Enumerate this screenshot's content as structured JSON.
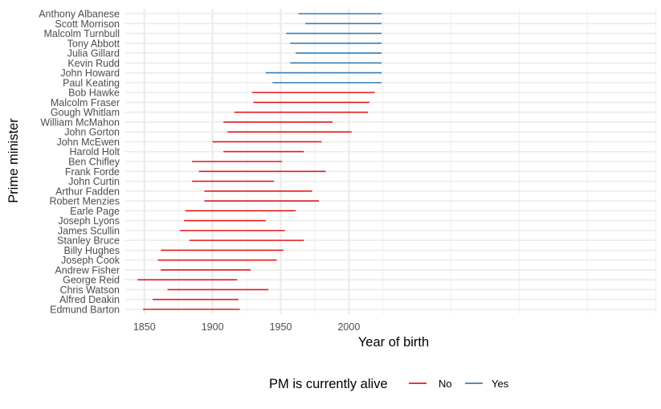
{
  "chart_data": {
    "type": "range-segments",
    "xlabel": "Year of birth",
    "ylabel": "Prime minister",
    "xlim": [
      1836,
      2226
    ],
    "x_ticks": [
      1850,
      1900,
      1950,
      2000
    ],
    "grid": true,
    "legend": {
      "title": "PM is currently alive",
      "position": "bottom",
      "items": [
        {
          "label": "No",
          "color": "#E41A1C"
        },
        {
          "label": "Yes",
          "color": "#377EB8"
        }
      ]
    },
    "series": [
      {
        "label": "Edmund Barton",
        "start": 1849,
        "end": 1920,
        "alive": "No"
      },
      {
        "label": "Alfred Deakin",
        "start": 1856,
        "end": 1919,
        "alive": "No"
      },
      {
        "label": "Chris Watson",
        "start": 1867,
        "end": 1941,
        "alive": "No"
      },
      {
        "label": "George Reid",
        "start": 1845,
        "end": 1918,
        "alive": "No"
      },
      {
        "label": "Andrew Fisher",
        "start": 1862,
        "end": 1928,
        "alive": "No"
      },
      {
        "label": "Joseph Cook",
        "start": 1860,
        "end": 1947,
        "alive": "No"
      },
      {
        "label": "Billy Hughes",
        "start": 1862,
        "end": 1952,
        "alive": "No"
      },
      {
        "label": "Stanley Bruce",
        "start": 1883,
        "end": 1967,
        "alive": "No"
      },
      {
        "label": "James Scullin",
        "start": 1876,
        "end": 1953,
        "alive": "No"
      },
      {
        "label": "Joseph Lyons",
        "start": 1879,
        "end": 1939,
        "alive": "No"
      },
      {
        "label": "Earle Page",
        "start": 1880,
        "end": 1961,
        "alive": "No"
      },
      {
        "label": "Robert Menzies",
        "start": 1894,
        "end": 1978,
        "alive": "No"
      },
      {
        "label": "Arthur Fadden",
        "start": 1894,
        "end": 1973,
        "alive": "No"
      },
      {
        "label": "John Curtin",
        "start": 1885,
        "end": 1945,
        "alive": "No"
      },
      {
        "label": "Frank Forde",
        "start": 1890,
        "end": 1983,
        "alive": "No"
      },
      {
        "label": "Ben Chifley",
        "start": 1885,
        "end": 1951,
        "alive": "No"
      },
      {
        "label": "Harold Holt",
        "start": 1908,
        "end": 1967,
        "alive": "No"
      },
      {
        "label": "John McEwen",
        "start": 1900,
        "end": 1980,
        "alive": "No"
      },
      {
        "label": "John Gorton",
        "start": 1911,
        "end": 2002,
        "alive": "No"
      },
      {
        "label": "William McMahon",
        "start": 1908,
        "end": 1988,
        "alive": "No"
      },
      {
        "label": "Gough Whitlam",
        "start": 1916,
        "end": 2014,
        "alive": "No"
      },
      {
        "label": "Malcolm Fraser",
        "start": 1930,
        "end": 2015,
        "alive": "No"
      },
      {
        "label": "Bob Hawke",
        "start": 1929,
        "end": 2019,
        "alive": "No"
      },
      {
        "label": "Paul Keating",
        "start": 1944,
        "end": 2024,
        "alive": "Yes"
      },
      {
        "label": "John Howard",
        "start": 1939,
        "end": 2024,
        "alive": "Yes"
      },
      {
        "label": "Kevin Rudd",
        "start": 1957,
        "end": 2024,
        "alive": "Yes"
      },
      {
        "label": "Julia Gillard",
        "start": 1961,
        "end": 2024,
        "alive": "Yes"
      },
      {
        "label": "Tony Abbott",
        "start": 1957,
        "end": 2024,
        "alive": "Yes"
      },
      {
        "label": "Malcolm Turnbull",
        "start": 1954,
        "end": 2024,
        "alive": "Yes"
      },
      {
        "label": "Scott Morrison",
        "start": 1968,
        "end": 2024,
        "alive": "Yes"
      },
      {
        "label": "Anthony Albanese",
        "start": 1963,
        "end": 2024,
        "alive": "Yes"
      }
    ]
  }
}
